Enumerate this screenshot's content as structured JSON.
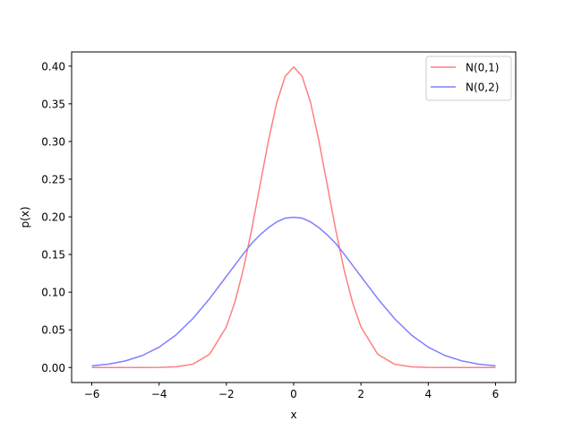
{
  "chart_data": {
    "type": "line",
    "title": "",
    "xlabel": "x",
    "ylabel": "p(x)",
    "xlim": [
      -6.6,
      6.6
    ],
    "ylim": [
      -0.0199,
      0.4188
    ],
    "xticks": [
      -6,
      -4,
      -2,
      0,
      2,
      4,
      6
    ],
    "xtick_labels": [
      "−6",
      "−4",
      "−2",
      "0",
      "2",
      "4",
      "6"
    ],
    "yticks": [
      0.0,
      0.05,
      0.1,
      0.15,
      0.2,
      0.25,
      0.3,
      0.35,
      0.4
    ],
    "ytick_labels": [
      "0.00",
      "0.05",
      "0.10",
      "0.15",
      "0.20",
      "0.25",
      "0.30",
      "0.35",
      "0.40"
    ],
    "grid": false,
    "legend_position": "top-right",
    "x": [
      -6,
      -5.5,
      -5,
      -4.5,
      -4,
      -3.5,
      -3,
      -2.5,
      -2,
      -1.75,
      -1.5,
      -1.25,
      -1,
      -0.75,
      -0.5,
      -0.25,
      0,
      0.25,
      0.5,
      0.75,
      1,
      1.25,
      1.5,
      1.75,
      2,
      2.5,
      3,
      3.5,
      4,
      4.5,
      5,
      5.5,
      6
    ],
    "series": [
      {
        "name": "N(0,1)",
        "color": "#ff7f7f",
        "values": [
          0.0,
          0.0,
          0.0,
          0.0,
          0.0001,
          0.0009,
          0.0044,
          0.0175,
          0.054,
          0.0863,
          0.1295,
          0.1826,
          0.242,
          0.3011,
          0.3521,
          0.3867,
          0.3989,
          0.3867,
          0.3521,
          0.3011,
          0.242,
          0.1826,
          0.1295,
          0.0863,
          0.054,
          0.0175,
          0.0044,
          0.0009,
          0.0001,
          0.0,
          0.0,
          0.0,
          0.0
        ]
      },
      {
        "name": "N(0,2)",
        "color": "#7f7fff",
        "values": [
          0.0022,
          0.0045,
          0.0088,
          0.0159,
          0.027,
          0.0431,
          0.0648,
          0.0913,
          0.121,
          0.1358,
          0.1506,
          0.1647,
          0.176,
          0.1856,
          0.1933,
          0.1983,
          0.1995,
          0.1983,
          0.1933,
          0.1856,
          0.176,
          0.1647,
          0.1506,
          0.1358,
          0.121,
          0.0913,
          0.0648,
          0.0431,
          0.027,
          0.0159,
          0.0088,
          0.0045,
          0.0022
        ]
      }
    ]
  }
}
